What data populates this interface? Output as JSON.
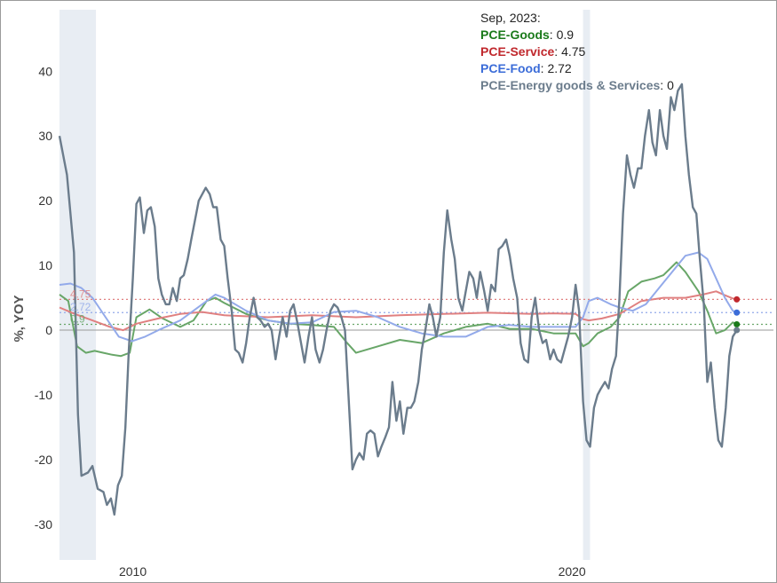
{
  "chart_data": {
    "type": "line",
    "title": "",
    "ylabel": "%, YOY",
    "xlabel": "",
    "xlim": [
      2008.25,
      2024.0
    ],
    "ylim": [
      -35.5,
      49.5
    ],
    "yticks": [
      -30,
      -20,
      -10,
      0,
      10,
      20,
      30,
      40
    ],
    "xticks": [
      {
        "value": 2010,
        "label": "2010"
      },
      {
        "value": 2020,
        "label": "2020"
      }
    ],
    "grid": false,
    "recessions": [
      [
        2008.25,
        2009.08
      ],
      [
        2020.17,
        2020.33
      ]
    ],
    "tooltip": {
      "date": "Sep, 2023:",
      "entries": [
        {
          "series": "PCE-Goods",
          "value": "0.9"
        },
        {
          "series": "PCE-Service",
          "value": "4.75"
        },
        {
          "series": "PCE-Food",
          "value": "2.72"
        },
        {
          "series": "PCE-Energy goods & Services",
          "value": "0"
        }
      ]
    },
    "series": [
      {
        "name": "PCE-Goods",
        "color": "#68a668",
        "label_color": "#1a7a1a",
        "marker_color": "#1a7a1a",
        "end_label": "0.9",
        "end_value": 0.9,
        "x": [
          2008.25,
          2008.45,
          2008.65,
          2008.85,
          2009.05,
          2009.25,
          2009.45,
          2009.65,
          2009.85,
          2010.0,
          2010.3,
          2010.6,
          2011.0,
          2011.3,
          2011.6,
          2011.8,
          2012.0,
          2012.5,
          2013.0,
          2013.5,
          2014.0,
          2014.5,
          2014.8,
          2015.0,
          2015.5,
          2016.0,
          2016.5,
          2017.0,
          2017.5,
          2018.0,
          2018.5,
          2019.0,
          2019.5,
          2020.0,
          2020.17,
          2020.3,
          2020.5,
          2020.8,
          2021.0,
          2021.2,
          2021.5,
          2021.8,
          2022.0,
          2022.3,
          2022.5,
          2022.8,
          2023.0,
          2023.2,
          2023.4,
          2023.58,
          2023.67
        ],
        "y": [
          5.5,
          4.5,
          -2.5,
          -3.5,
          -3.2,
          -3.5,
          -3.8,
          -4,
          -3.5,
          2,
          3.2,
          1.8,
          0.5,
          1.5,
          4.5,
          5,
          4.2,
          2.5,
          1.5,
          1,
          0.8,
          0.5,
          -2,
          -3.5,
          -2.5,
          -1.5,
          -2,
          -0.5,
          0.5,
          1,
          0.2,
          0.2,
          -0.5,
          -0.5,
          -2.5,
          -2,
          -0.5,
          0.5,
          2,
          6,
          7.5,
          8,
          8.5,
          10.5,
          9,
          6,
          3,
          -0.5,
          0,
          1.2,
          0.9
        ]
      },
      {
        "name": "PCE-Service",
        "color": "#e08080",
        "label_color": "#c0282d",
        "marker_color": "#c0282d",
        "end_label": "4.75",
        "end_value": 4.75,
        "x": [
          2008.25,
          2008.6,
          2009.0,
          2009.4,
          2009.7,
          2010.0,
          2010.5,
          2011.0,
          2011.5,
          2012.0,
          2013.0,
          2014.0,
          2015.0,
          2016.0,
          2017.0,
          2018.0,
          2019.0,
          2019.5,
          2020.0,
          2020.17,
          2020.3,
          2020.6,
          2021.0,
          2021.5,
          2022.0,
          2022.5,
          2022.9,
          2023.2,
          2023.4,
          2023.58,
          2023.67
        ],
        "y": [
          3.5,
          2.5,
          1.5,
          0.5,
          0,
          1,
          1.8,
          2.5,
          2.8,
          2.3,
          2,
          2.3,
          2,
          2.3,
          2.5,
          2.7,
          2.5,
          2.6,
          2.5,
          1.7,
          1.5,
          1.8,
          2.5,
          4.5,
          5,
          5,
          5.5,
          6,
          5.4,
          4.9,
          4.75
        ]
      },
      {
        "name": "PCE-Food",
        "color": "#93aaea",
        "label_color": "#3b6cd8",
        "marker_color": "#3b6cd8",
        "end_label": "2.72",
        "end_value": 2.72,
        "x": [
          2008.25,
          2008.5,
          2008.75,
          2009.0,
          2009.3,
          2009.6,
          2009.9,
          2010.2,
          2010.5,
          2011.0,
          2011.5,
          2011.8,
          2012.0,
          2012.5,
          2013.0,
          2013.5,
          2014.0,
          2014.5,
          2015.0,
          2015.5,
          2016.0,
          2016.5,
          2017.0,
          2017.5,
          2018.0,
          2018.5,
          2019.0,
          2019.5,
          2020.0,
          2020.17,
          2020.3,
          2020.5,
          2020.8,
          2021.0,
          2021.3,
          2021.6,
          2021.9,
          2022.2,
          2022.5,
          2022.8,
          2023.0,
          2023.2,
          2023.4,
          2023.58,
          2023.67
        ],
        "y": [
          7,
          7.2,
          6.5,
          5,
          2,
          -1,
          -1.7,
          -1,
          0,
          1.5,
          4,
          5.5,
          5,
          3,
          1.5,
          1,
          1.2,
          2.8,
          3,
          2,
          0.5,
          -0.5,
          -1,
          -1,
          0.5,
          0.8,
          0.5,
          0.5,
          0.5,
          2,
          4.5,
          5,
          4,
          3.5,
          3,
          4,
          6.5,
          9,
          11.5,
          12,
          11,
          8,
          5,
          3,
          2.72
        ]
      },
      {
        "name": "PCE-Energy goods & Services",
        "color": "#6b7c8c",
        "label_color": "#6b7c8c",
        "marker_color": "#6b7c8c",
        "end_label": "",
        "end_value": 0,
        "x": [
          2008.25,
          2008.42,
          2008.58,
          2008.67,
          2008.75,
          2008.9,
          2009.0,
          2009.12,
          2009.25,
          2009.33,
          2009.42,
          2009.5,
          2009.58,
          2009.67,
          2009.75,
          2009.83,
          2009.92,
          2010.0,
          2010.08,
          2010.17,
          2010.25,
          2010.33,
          2010.42,
          2010.5,
          2010.58,
          2010.67,
          2010.75,
          2010.83,
          2010.92,
          2011.0,
          2011.08,
          2011.17,
          2011.25,
          2011.42,
          2011.58,
          2011.67,
          2011.75,
          2011.83,
          2011.92,
          2012.0,
          2012.08,
          2012.17,
          2012.25,
          2012.33,
          2012.42,
          2012.5,
          2012.58,
          2012.67,
          2012.75,
          2012.83,
          2012.92,
          2013.0,
          2013.08,
          2013.17,
          2013.25,
          2013.33,
          2013.42,
          2013.5,
          2013.58,
          2013.67,
          2013.75,
          2013.83,
          2013.92,
          2014.0,
          2014.08,
          2014.17,
          2014.25,
          2014.33,
          2014.42,
          2014.5,
          2014.58,
          2014.67,
          2014.75,
          2014.83,
          2014.92,
          2015.0,
          2015.08,
          2015.17,
          2015.25,
          2015.33,
          2015.42,
          2015.5,
          2015.58,
          2015.67,
          2015.75,
          2015.83,
          2015.92,
          2016.0,
          2016.08,
          2016.17,
          2016.25,
          2016.33,
          2016.42,
          2016.5,
          2016.58,
          2016.67,
          2016.75,
          2016.83,
          2016.92,
          2017.0,
          2017.08,
          2017.17,
          2017.25,
          2017.33,
          2017.42,
          2017.5,
          2017.58,
          2017.67,
          2017.75,
          2017.83,
          2017.92,
          2018.0,
          2018.08,
          2018.17,
          2018.25,
          2018.33,
          2018.42,
          2018.5,
          2018.58,
          2018.67,
          2018.75,
          2018.83,
          2018.92,
          2019.0,
          2019.08,
          2019.17,
          2019.25,
          2019.33,
          2019.42,
          2019.5,
          2019.58,
          2019.67,
          2019.75,
          2019.83,
          2019.92,
          2020.0,
          2020.08,
          2020.17,
          2020.25,
          2020.33,
          2020.42,
          2020.5,
          2020.58,
          2020.67,
          2020.75,
          2020.83,
          2020.92,
          2021.0,
          2021.08,
          2021.17,
          2021.25,
          2021.33,
          2021.42,
          2021.5,
          2021.58,
          2021.67,
          2021.75,
          2021.83,
          2021.92,
          2022.0,
          2022.08,
          2022.17,
          2022.25,
          2022.33,
          2022.42,
          2022.5,
          2022.58,
          2022.67,
          2022.75,
          2022.83,
          2022.92,
          2023.0,
          2023.08,
          2023.17,
          2023.25,
          2023.33,
          2023.42,
          2023.5,
          2023.58,
          2023.67
        ],
        "y": [
          30,
          24,
          12,
          -13,
          -22.5,
          -22,
          -21,
          -24.5,
          -25,
          -27,
          -26,
          -28.5,
          -24,
          -22.5,
          -15,
          -3,
          8,
          19.5,
          20.5,
          15,
          18.5,
          19,
          16,
          8,
          5.5,
          4,
          4,
          6.5,
          4.5,
          8,
          8.5,
          11,
          14,
          20,
          22,
          21,
          19,
          19,
          14,
          13,
          8,
          3,
          -3,
          -3.5,
          -5,
          -2,
          2,
          5,
          2,
          1.5,
          0.5,
          1,
          0,
          -4.5,
          -1,
          2,
          -1,
          3,
          4,
          1,
          -2,
          -5,
          -1,
          2,
          -3,
          -5,
          -3,
          0,
          3,
          4,
          3.5,
          2,
          0,
          -10,
          -21.5,
          -20,
          -19,
          -20,
          -16,
          -15.5,
          -16,
          -19.5,
          -18,
          -16.5,
          -15,
          -8,
          -14,
          -11,
          -16,
          -12,
          -12,
          -11,
          -8,
          -3,
          0,
          4,
          2,
          -1,
          2,
          12,
          18.5,
          14,
          11,
          5,
          3,
          6,
          9,
          8,
          5,
          9,
          6,
          3,
          7,
          6,
          12.5,
          13,
          14,
          11.5,
          8,
          5,
          -2,
          -4.5,
          -5,
          2,
          5,
          0,
          -2,
          -1.5,
          -4.5,
          -3,
          -4.5,
          -5,
          -3,
          -1,
          2,
          7,
          3,
          -11,
          -17,
          -18,
          -12,
          -10,
          -9,
          -8,
          -9,
          -6,
          -4,
          5,
          18,
          27,
          24,
          22,
          25,
          25,
          30,
          34,
          29,
          27,
          34,
          30,
          28,
          36,
          34,
          37,
          38,
          30,
          24,
          19,
          18,
          11,
          4,
          -8,
          -5,
          -12,
          -17,
          -18,
          -12,
          -4,
          -1,
          0
        ]
      }
    ]
  }
}
